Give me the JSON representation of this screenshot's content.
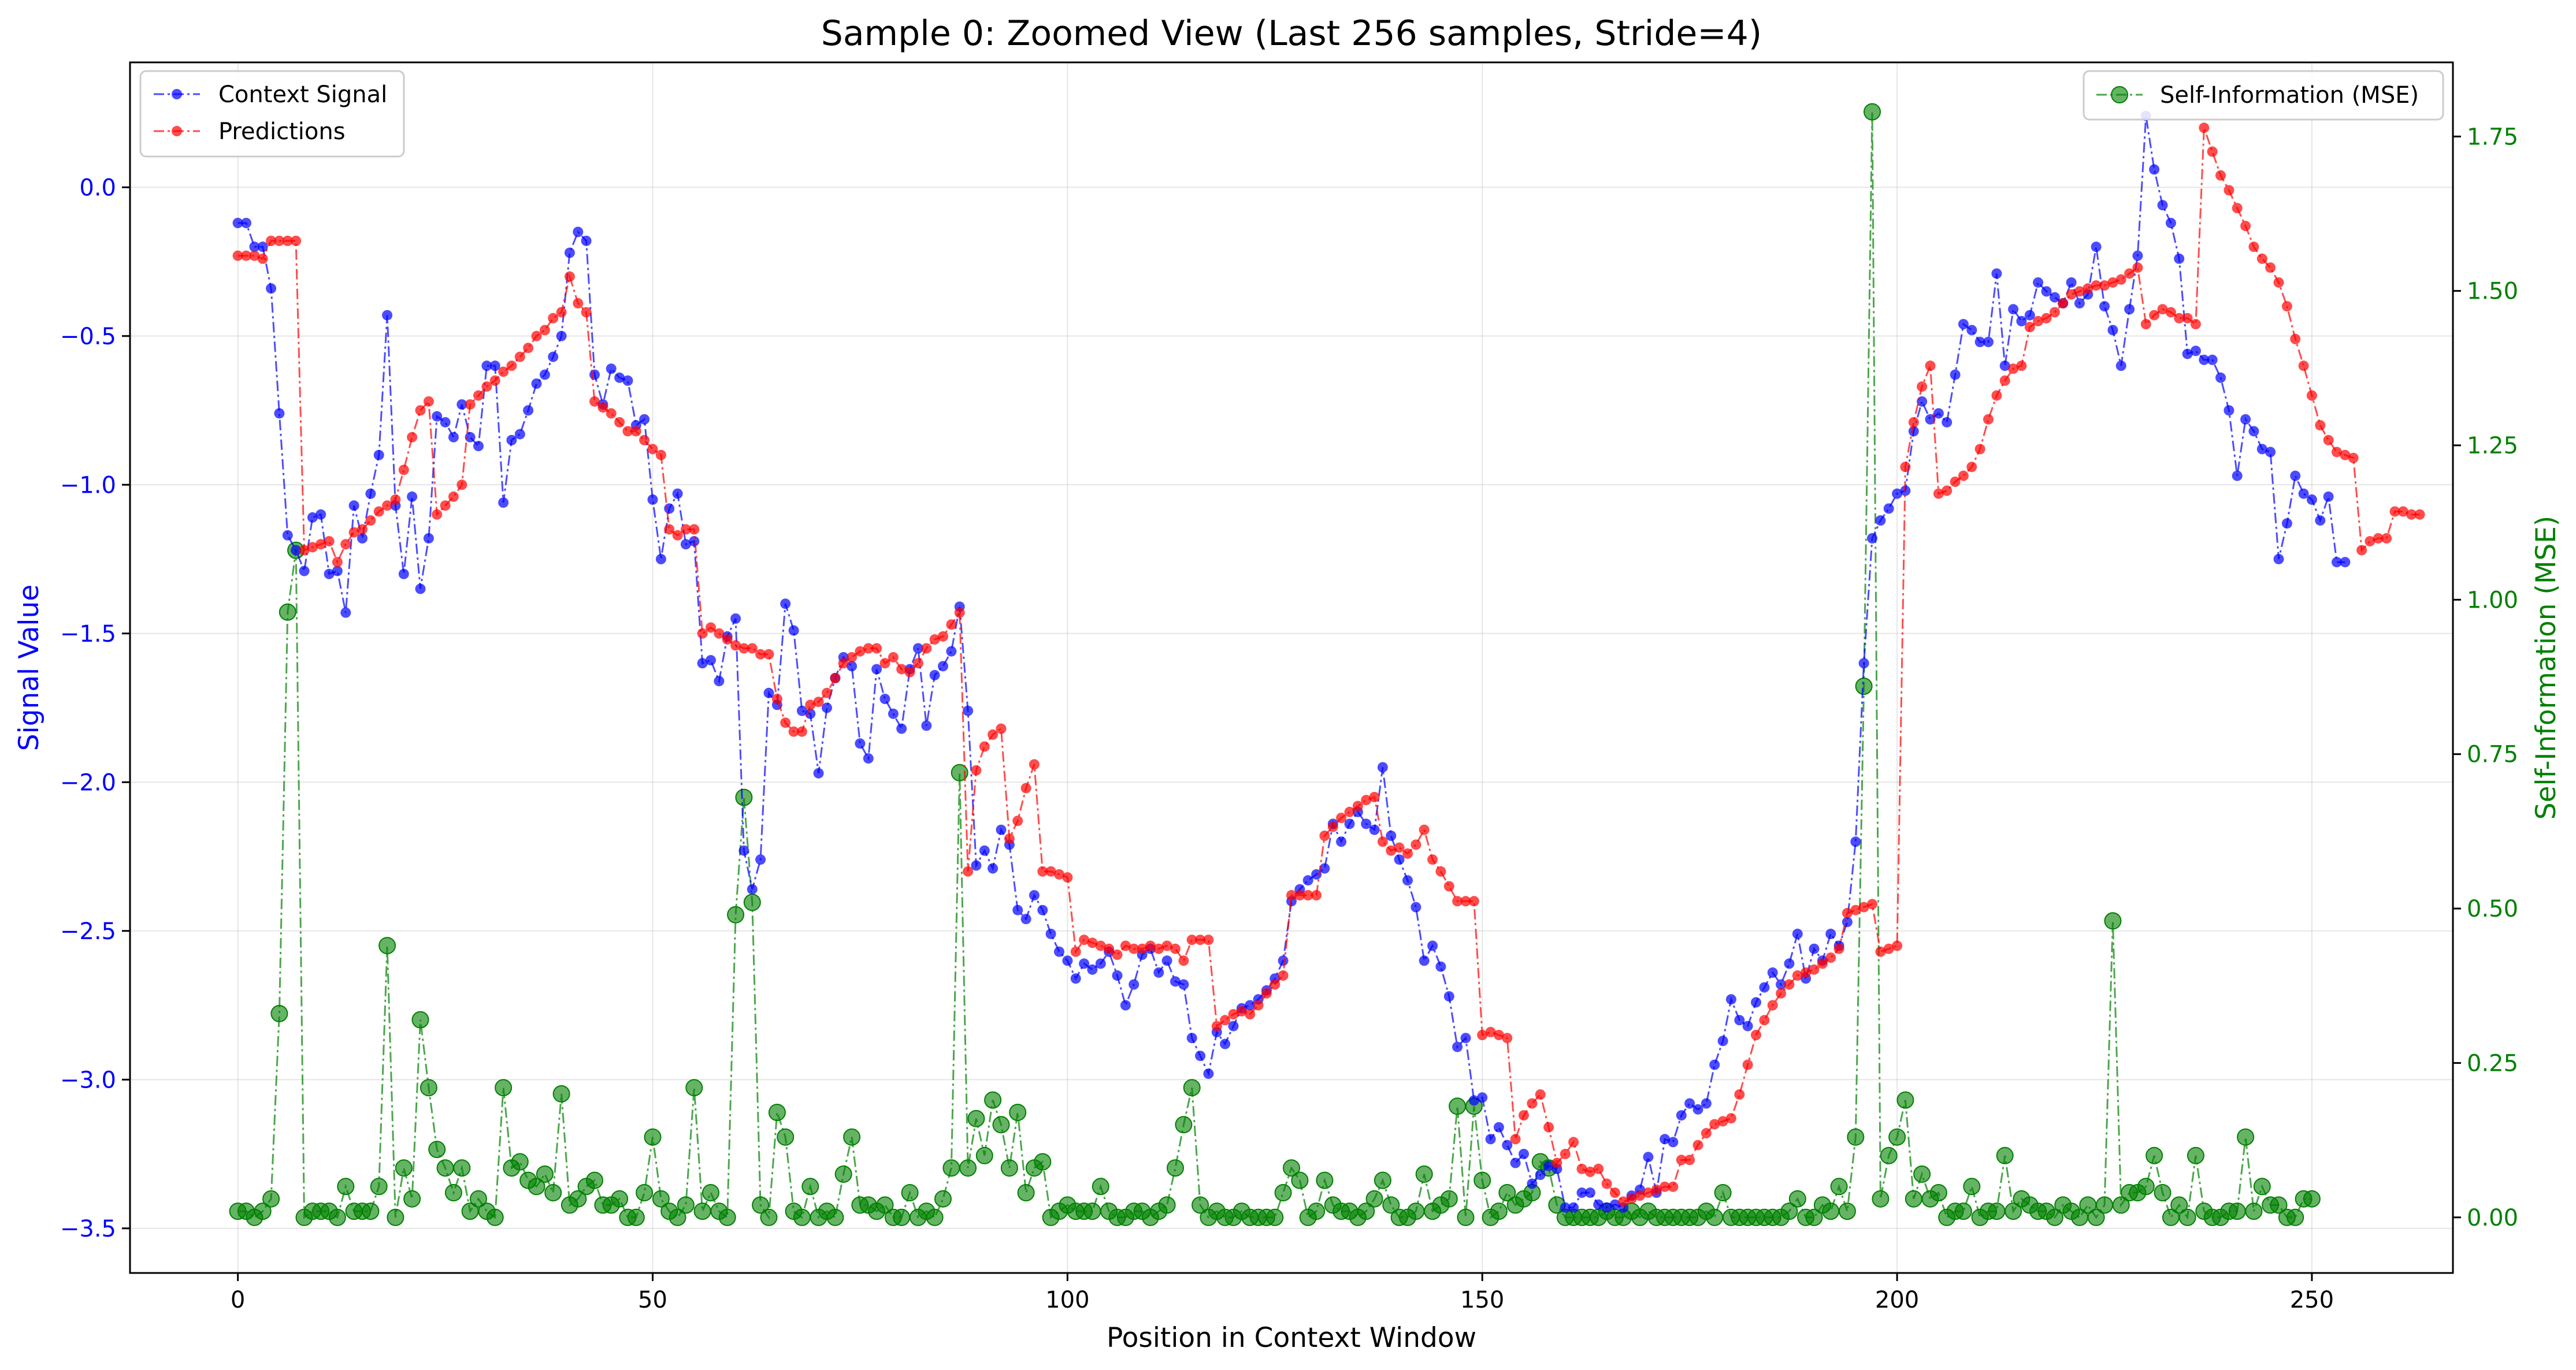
{
  "chart_data": {
    "type": "line",
    "title": "Sample 0: Zoomed View (Last 256 samples, Stride=4)",
    "xlabel": "Position in Context Window",
    "ylabel_left": "Signal Value",
    "ylabel_right": "Self-Information (MSE)",
    "xlim": [
      -13,
      267
    ],
    "ylim_left": [
      -3.65,
      0.42
    ],
    "ylim_right": [
      -0.09,
      1.87
    ],
    "x_ticks": [
      0,
      50,
      100,
      150,
      200,
      250
    ],
    "y_ticks_left": [
      -3.5,
      -3.0,
      -2.5,
      -2.0,
      -1.5,
      -1.0,
      -0.5,
      0.0
    ],
    "y_ticks_left_labels": [
      "−3.5",
      "−3.0",
      "−2.5",
      "−2.0",
      "−1.5",
      "−1.0",
      "−0.5",
      "0.0"
    ],
    "y_ticks_right": [
      0.0,
      0.25,
      0.5,
      0.75,
      1.0,
      1.25,
      1.5,
      1.75
    ],
    "y_ticks_right_labels": [
      "0.00",
      "0.25",
      "0.50",
      "0.75",
      "1.00",
      "1.25",
      "1.50",
      "1.75"
    ],
    "grid": true,
    "legend_left": {
      "placement": "top-left",
      "entries": [
        "Context Signal",
        "Predictions"
      ]
    },
    "legend_right": {
      "placement": "top-right",
      "entries": [
        "Self-Information (MSE)"
      ]
    },
    "colors": {
      "context": "#0000ff",
      "predictions": "#ff0000",
      "self_info": "#008000",
      "left_axis": "#0000ff",
      "right_axis": "#008000"
    },
    "series": [
      {
        "name": "Context Signal",
        "axis": "left",
        "x_start": 0,
        "values": [
          -0.12,
          -0.12,
          -0.2,
          -0.2,
          -0.34,
          -0.76,
          -1.17,
          -1.22,
          -1.29,
          -1.11,
          -1.1,
          -1.3,
          -1.29,
          -1.43,
          -1.07,
          -1.18,
          -1.03,
          -0.9,
          -0.43,
          -1.07,
          -1.3,
          -1.04,
          -1.35,
          -1.18,
          -0.77,
          -0.79,
          -0.84,
          -0.73,
          -0.84,
          -0.87,
          -0.6,
          -0.6,
          -1.06,
          -0.85,
          -0.83,
          -0.75,
          -0.66,
          -0.63,
          -0.57,
          -0.5,
          -0.22,
          -0.15,
          -0.18,
          -0.63,
          -0.73,
          -0.61,
          -0.64,
          -0.65,
          -0.8,
          -0.78,
          -1.05,
          -1.25,
          -1.08,
          -1.03,
          -1.2,
          -1.19,
          -1.6,
          -1.59,
          -1.66,
          -1.51,
          -1.45,
          -2.23,
          -2.36,
          -2.26,
          -1.7,
          -1.74,
          -1.4,
          -1.49,
          -1.76,
          -1.77,
          -1.97,
          -1.75,
          -1.65,
          -1.58,
          -1.61,
          -1.87,
          -1.92,
          -1.62,
          -1.72,
          -1.77,
          -1.82,
          -1.62,
          -1.55,
          -1.81,
          -1.64,
          -1.61,
          -1.56,
          -1.41,
          -1.76,
          -2.28,
          -2.23,
          -2.29,
          -2.16,
          -2.21,
          -2.43,
          -2.46,
          -2.38,
          -2.43,
          -2.51,
          -2.57,
          -2.6,
          -2.66,
          -2.61,
          -2.63,
          -2.61,
          -2.57,
          -2.65,
          -2.75,
          -2.68,
          -2.58,
          -2.56,
          -2.64,
          -2.6,
          -2.67,
          -2.68,
          -2.86,
          -2.92,
          -2.98,
          -2.84,
          -2.88,
          -2.82,
          -2.76,
          -2.75,
          -2.73,
          -2.7,
          -2.66,
          -2.6,
          -2.4,
          -2.36,
          -2.33,
          -2.31,
          -2.29,
          -2.14,
          -2.2,
          -2.14,
          -2.1,
          -2.14,
          -2.16,
          -1.95,
          -2.18,
          -2.26,
          -2.33,
          -2.42,
          -2.6,
          -2.55,
          -2.62,
          -2.72,
          -2.89,
          -2.86,
          -3.07,
          -3.06,
          -3.2,
          -3.16,
          -3.22,
          -3.28,
          -3.25,
          -3.35,
          -3.32,
          -3.29,
          -3.3,
          -3.43,
          -3.43,
          -3.38,
          -3.38,
          -3.42,
          -3.43,
          -3.42,
          -3.43,
          -3.39,
          -3.37,
          -3.26,
          -3.38,
          -3.2,
          -3.21,
          -3.12,
          -3.08,
          -3.1,
          -3.08,
          -2.95,
          -2.87,
          -2.73,
          -2.8,
          -2.82,
          -2.74,
          -2.69,
          -2.64,
          -2.68,
          -2.61,
          -2.51,
          -2.66,
          -2.56,
          -2.6,
          -2.51,
          -2.55,
          -2.47,
          -2.2,
          -1.6,
          -1.18,
          -1.12,
          -1.08,
          -1.03,
          -1.02,
          -0.82,
          -0.72,
          -0.78,
          -0.76,
          -0.79,
          -0.63,
          -0.46,
          -0.48,
          -0.52,
          -0.52,
          -0.29,
          -0.6,
          -0.41,
          -0.45,
          -0.43,
          -0.32,
          -0.35,
          -0.37,
          -0.39,
          -0.32,
          -0.39,
          -0.36,
          -0.2,
          -0.4,
          -0.48,
          -0.6,
          -0.41,
          -0.23,
          0.24,
          0.06,
          -0.06,
          -0.12,
          -0.24,
          -0.56,
          -0.55,
          -0.58,
          -0.58,
          -0.64,
          -0.75,
          -0.97,
          -0.78,
          -0.82,
          -0.88,
          -0.89,
          -1.25,
          -1.13,
          -0.97,
          -1.03,
          -1.05,
          -1.12,
          -1.04,
          -1.26,
          -1.26
        ]
      },
      {
        "name": "Predictions",
        "axis": "left",
        "x_start": 0,
        "values": [
          -0.23,
          -0.23,
          -0.23,
          -0.24,
          -0.18,
          -0.18,
          -0.18,
          -0.18,
          -1.22,
          -1.21,
          -1.2,
          -1.19,
          -1.26,
          -1.2,
          -1.16,
          -1.15,
          -1.12,
          -1.09,
          -1.07,
          -1.05,
          -0.95,
          -0.84,
          -0.75,
          -0.72,
          -1.1,
          -1.07,
          -1.04,
          -1.0,
          -0.73,
          -0.7,
          -0.67,
          -0.65,
          -0.62,
          -0.6,
          -0.57,
          -0.54,
          -0.5,
          -0.48,
          -0.44,
          -0.42,
          -0.3,
          -0.39,
          -0.42,
          -0.72,
          -0.74,
          -0.76,
          -0.79,
          -0.82,
          -0.82,
          -0.85,
          -0.88,
          -0.9,
          -1.15,
          -1.17,
          -1.15,
          -1.15,
          -1.5,
          -1.48,
          -1.5,
          -1.52,
          -1.54,
          -1.55,
          -1.55,
          -1.57,
          -1.57,
          -1.72,
          -1.8,
          -1.83,
          -1.83,
          -1.74,
          -1.73,
          -1.7,
          -1.65,
          -1.6,
          -1.58,
          -1.56,
          -1.55,
          -1.55,
          -1.6,
          -1.58,
          -1.62,
          -1.63,
          -1.6,
          -1.55,
          -1.52,
          -1.51,
          -1.47,
          -1.43,
          -2.3,
          -1.96,
          -1.88,
          -1.84,
          -1.82,
          -2.19,
          -2.13,
          -2.02,
          -1.94,
          -2.3,
          -2.3,
          -2.31,
          -2.32,
          -2.57,
          -2.53,
          -2.54,
          -2.55,
          -2.56,
          -2.58,
          -2.55,
          -2.56,
          -2.56,
          -2.55,
          -2.56,
          -2.55,
          -2.56,
          -2.6,
          -2.53,
          -2.53,
          -2.53,
          -2.82,
          -2.8,
          -2.78,
          -2.77,
          -2.78,
          -2.75,
          -2.71,
          -2.68,
          -2.65,
          -2.38,
          -2.38,
          -2.38,
          -2.38,
          -2.18,
          -2.15,
          -2.12,
          -2.1,
          -2.08,
          -2.06,
          -2.05,
          -2.2,
          -2.23,
          -2.22,
          -2.24,
          -2.21,
          -2.16,
          -2.26,
          -2.3,
          -2.35,
          -2.4,
          -2.4,
          -2.4,
          -2.85,
          -2.84,
          -2.85,
          -2.86,
          -3.2,
          -3.12,
          -3.08,
          -3.05,
          -3.16,
          -3.28,
          -3.25,
          -3.21,
          -3.3,
          -3.31,
          -3.3,
          -3.35,
          -3.38,
          -3.41,
          -3.4,
          -3.39,
          -3.38,
          -3.37,
          -3.36,
          -3.36,
          -3.27,
          -3.27,
          -3.22,
          -3.18,
          -3.15,
          -3.14,
          -3.13,
          -3.05,
          -2.95,
          -2.85,
          -2.8,
          -2.75,
          -2.71,
          -2.68,
          -2.65,
          -2.64,
          -2.63,
          -2.61,
          -2.59,
          -2.56,
          -2.44,
          -2.43,
          -2.42,
          -2.41,
          -2.57,
          -2.56,
          -2.55,
          -0.94,
          -0.79,
          -0.67,
          -0.6,
          -1.03,
          -1.02,
          -0.99,
          -0.97,
          -0.94,
          -0.88,
          -0.78,
          -0.7,
          -0.65,
          -0.61,
          -0.6,
          -0.47,
          -0.45,
          -0.44,
          -0.42,
          -0.39,
          -0.36,
          -0.35,
          -0.34,
          -0.33,
          -0.33,
          -0.32,
          -0.31,
          -0.29,
          -0.27,
          -0.46,
          -0.43,
          -0.41,
          -0.42,
          -0.44,
          -0.44,
          -0.46,
          0.2,
          0.12,
          0.04,
          -0.01,
          -0.07,
          -0.13,
          -0.2,
          -0.24,
          -0.27,
          -0.32,
          -0.4,
          -0.51,
          -0.6,
          -0.7,
          -0.8,
          -0.85,
          -0.89,
          -0.9,
          -0.91,
          -1.22,
          -1.19,
          -1.18,
          -1.18,
          -1.09,
          -1.09,
          -1.1,
          -1.1
        ]
      },
      {
        "name": "Self-Information (MSE)",
        "axis": "right",
        "x_start": 0,
        "values": [
          0.01,
          0.01,
          0.0,
          0.01,
          0.03,
          0.33,
          0.98,
          1.08,
          0.0,
          0.01,
          0.01,
          0.01,
          0.0,
          0.05,
          0.01,
          0.01,
          0.01,
          0.05,
          0.44,
          0.0,
          0.08,
          0.03,
          0.32,
          0.21,
          0.11,
          0.08,
          0.04,
          0.08,
          0.01,
          0.03,
          0.01,
          0.0,
          0.21,
          0.08,
          0.09,
          0.06,
          0.05,
          0.07,
          0.04,
          0.2,
          0.02,
          0.03,
          0.05,
          0.06,
          0.02,
          0.02,
          0.03,
          0.0,
          0.0,
          0.04,
          0.13,
          0.03,
          0.01,
          0.0,
          0.02,
          0.21,
          0.01,
          0.04,
          0.01,
          0.0,
          0.49,
          0.68,
          0.51,
          0.02,
          0.0,
          0.17,
          0.13,
          0.01,
          0.0,
          0.05,
          0.0,
          0.01,
          0.0,
          0.07,
          0.13,
          0.02,
          0.02,
          0.01,
          0.02,
          0.0,
          0.0,
          0.04,
          0.0,
          0.01,
          0.0,
          0.03,
          0.08,
          0.72,
          0.08,
          0.16,
          0.1,
          0.19,
          0.15,
          0.08,
          0.17,
          0.04,
          0.08,
          0.09,
          0.0,
          0.01,
          0.02,
          0.01,
          0.01,
          0.01,
          0.05,
          0.01,
          0.0,
          0.0,
          0.01,
          0.01,
          0.0,
          0.01,
          0.02,
          0.08,
          0.15,
          0.21,
          0.02,
          0.0,
          0.01,
          0.0,
          0.0,
          0.01,
          0.0,
          0.0,
          0.0,
          0.0,
          0.04,
          0.08,
          0.06,
          0.0,
          0.01,
          0.06,
          0.02,
          0.01,
          0.01,
          0.0,
          0.01,
          0.03,
          0.06,
          0.02,
          0.0,
          0.0,
          0.01,
          0.07,
          0.01,
          0.02,
          0.03,
          0.18,
          0.0,
          0.18,
          0.06,
          0.0,
          0.01,
          0.04,
          0.02,
          0.03,
          0.04,
          0.09,
          0.08,
          0.02,
          0.0,
          0.0,
          0.0,
          0.0,
          0.0,
          0.01,
          0.0,
          0.0,
          0.01,
          0.0,
          0.01,
          0.0,
          0.0,
          0.0,
          0.0,
          0.0,
          0.0,
          0.01,
          0.0,
          0.04,
          0.0,
          0.0,
          0.0,
          0.0,
          0.0,
          0.0,
          0.0,
          0.01,
          0.03,
          0.0,
          0.0,
          0.02,
          0.01,
          0.05,
          0.01,
          0.13,
          0.86,
          1.79,
          0.03,
          0.1,
          0.13,
          0.19,
          0.03,
          0.07,
          0.03,
          0.04,
          0.0,
          0.01,
          0.01,
          0.05,
          0.0,
          0.01,
          0.01,
          0.1,
          0.01,
          0.03,
          0.02,
          0.01,
          0.01,
          0.0,
          0.02,
          0.01,
          0.0,
          0.02,
          0.0,
          0.02,
          0.48,
          0.02,
          0.04,
          0.04,
          0.05,
          0.1,
          0.04,
          0.0,
          0.02,
          0.0,
          0.1,
          0.01,
          0.0,
          0.0,
          0.01,
          0.01,
          0.13,
          0.01,
          0.05,
          0.02,
          0.02,
          0.0,
          0.0,
          0.03,
          0.03
        ]
      }
    ]
  }
}
